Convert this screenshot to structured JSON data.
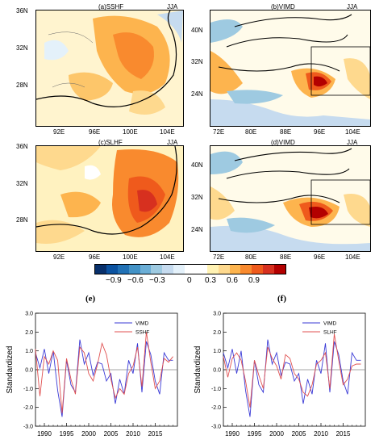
{
  "maps": [
    {
      "title": "(a)SSHF",
      "season": "JJA",
      "x_ticks": [
        "92E",
        "96E",
        "100E",
        "104E"
      ],
      "y_ticks": [
        "36N",
        "32N",
        "28N"
      ]
    },
    {
      "title": "(b)VIMD",
      "season": "JJA",
      "x_ticks": [
        "72E",
        "80E",
        "88E",
        "96E",
        "104E"
      ],
      "y_ticks": [
        "40N",
        "32N",
        "24N"
      ]
    },
    {
      "title": "(c)SLHF",
      "season": "JJA",
      "x_ticks": [
        "92E",
        "96E",
        "100E",
        "104E"
      ],
      "y_ticks": [
        "36N",
        "32N",
        "28N"
      ]
    },
    {
      "title": "(d)VIMD",
      "season": "JJA",
      "x_ticks": [
        "72E",
        "80E",
        "88E",
        "96E",
        "104E"
      ],
      "y_ticks": [
        "40N",
        "32N",
        "24N"
      ]
    }
  ],
  "colorbar": {
    "labels": [
      "−0.9",
      "−0.6",
      "−0.3",
      "0",
      "0.3",
      "0.6",
      "0.9"
    ],
    "colors": [
      "#08306b",
      "#0b52a0",
      "#2171b5",
      "#4292c6",
      "#6baed6",
      "#9ecae1",
      "#c6dbef",
      "#e4f1fa",
      "#ffffff",
      "#ffffff",
      "#fff2b3",
      "#fed98e",
      "#fdb44e",
      "#f98a2e",
      "#ef5a1c",
      "#d7301f",
      "#b30000"
    ]
  },
  "sublabels": [
    "(e)",
    "(f)"
  ],
  "chart_data": [
    {
      "type": "line",
      "title": "(e)",
      "ylabel": "Standardized",
      "ylim": [
        -3.0,
        3.0
      ],
      "y_ticks": [
        "3.0",
        "2.0",
        "1.0",
        "0.0",
        "-1.0",
        "-2.0",
        "-3.0"
      ],
      "x_ticks": [
        "1990",
        "1995",
        "2000",
        "2005",
        "2010",
        "2015"
      ],
      "x": [
        1988,
        1989,
        1990,
        1991,
        1992,
        1993,
        1994,
        1995,
        1996,
        1997,
        1998,
        1999,
        2000,
        2001,
        2002,
        2003,
        2004,
        2005,
        2006,
        2007,
        2008,
        2009,
        2010,
        2011,
        2012,
        2013,
        2014,
        2015,
        2016,
        2017,
        2018,
        2019
      ],
      "xlim": [
        1988,
        2020
      ],
      "legend": "top-right",
      "series": [
        {
          "name": "VIMD",
          "color": "#3a3ad6",
          "values": [
            0.9,
            0.1,
            1.1,
            -0.2,
            1.0,
            -1.1,
            -2.5,
            0.5,
            -0.8,
            -1.2,
            1.6,
            0.3,
            0.9,
            -0.3,
            0.4,
            0.3,
            -0.6,
            -0.2,
            -1.8,
            -0.5,
            -1.3,
            0.5,
            -0.2,
            1.4,
            -1.2,
            1.5,
            0.8,
            -0.6,
            -1.3,
            0.9,
            0.5,
            0.5
          ]
        },
        {
          "name": "SSHF",
          "color": "#e05050",
          "values": [
            1.1,
            -1.4,
            0.7,
            0.3,
            1.0,
            0.5,
            -2.3,
            0.6,
            -0.5,
            -1.3,
            1.2,
            0.9,
            -0.2,
            -0.6,
            0.3,
            1.4,
            0.8,
            -0.5,
            -1.5,
            -1.0,
            -1.3,
            -0.2,
            0.2,
            1.2,
            -0.9,
            2.0,
            0.4,
            -1.0,
            -0.6,
            0.6,
            0.4,
            0.7
          ]
        }
      ]
    },
    {
      "type": "line",
      "title": "(f)",
      "ylabel": "Standardized",
      "ylim": [
        -3.0,
        3.0
      ],
      "y_ticks": [
        "3.0",
        "2.0",
        "1.0",
        "0.0",
        "-1.0",
        "-2.0",
        "-3.0"
      ],
      "x_ticks": [
        "1990",
        "1995",
        "2000",
        "2005",
        "2010",
        "2015"
      ],
      "x": [
        1988,
        1989,
        1990,
        1991,
        1992,
        1993,
        1994,
        1995,
        1996,
        1997,
        1998,
        1999,
        2000,
        2001,
        2002,
        2003,
        2004,
        2005,
        2006,
        2007,
        2008,
        2009,
        2010,
        2011,
        2012,
        2013,
        2014,
        2015,
        2016,
        2017,
        2018,
        2019
      ],
      "xlim": [
        1988,
        2020
      ],
      "legend": "top-right",
      "series": [
        {
          "name": "VIMD",
          "color": "#3a3ad6",
          "values": [
            0.9,
            0.1,
            1.1,
            -0.2,
            1.0,
            -1.1,
            -2.5,
            0.5,
            -0.8,
            -1.2,
            1.6,
            0.3,
            0.9,
            -0.3,
            0.4,
            0.3,
            -0.6,
            -0.2,
            -1.8,
            -0.5,
            -1.3,
            0.5,
            -0.2,
            1.4,
            -1.2,
            1.5,
            0.8,
            -0.6,
            -1.3,
            0.9,
            0.5,
            0.5
          ]
        },
        {
          "name": "SLHF",
          "color": "#e05050",
          "values": [
            0.7,
            -0.4,
            0.6,
            0.9,
            0.5,
            -0.6,
            -2.0,
            0.5,
            -0.3,
            -1.0,
            1.2,
            0.6,
            0.2,
            -0.5,
            0.8,
            0.6,
            -0.2,
            -0.5,
            -1.2,
            -1.4,
            -0.8,
            0.3,
            0.5,
            0.9,
            -1.0,
            1.9,
            0.5,
            -0.8,
            -0.5,
            0.2,
            0.3,
            0.3
          ]
        }
      ]
    }
  ]
}
